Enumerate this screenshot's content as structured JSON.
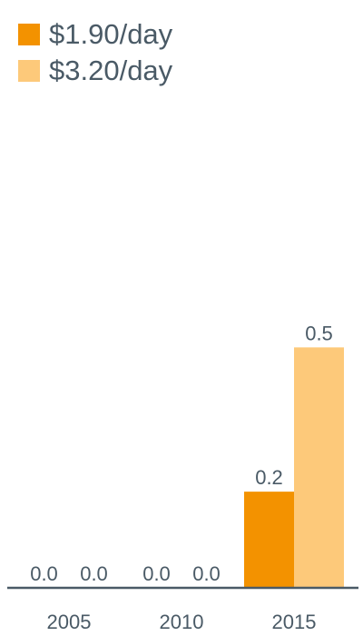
{
  "chart_data": {
    "type": "bar",
    "categories": [
      "2005",
      "2010",
      "2015"
    ],
    "series": [
      {
        "name": "$1.90/day",
        "color": "#f39200",
        "values": [
          0.0,
          0.0,
          0.2
        ],
        "labels": [
          "0.0",
          "0.0",
          "0.2"
        ]
      },
      {
        "name": "$3.20/day",
        "color": "#fdc97a",
        "values": [
          0.0,
          0.0,
          0.5
        ],
        "labels": [
          "0.0",
          "0.0",
          "0.5"
        ]
      }
    ],
    "title": "",
    "xlabel": "",
    "ylabel": "",
    "ylim": [
      0,
      0.58
    ],
    "grid": false,
    "legend": "top-left",
    "axis_color": "#4a5a66"
  }
}
